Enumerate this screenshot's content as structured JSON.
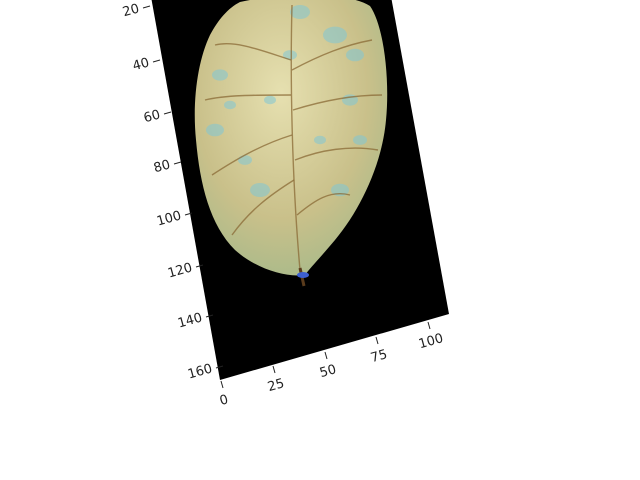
{
  "image": {
    "subject": "leaf-icon",
    "background_color": "#000000",
    "leaf_base_color": "#c9c08a",
    "leaf_highlight_color": "#e6e0b0",
    "spot_color": "#7fc7d6",
    "vein_color": "#8a6a35",
    "stem_color": "#5a3b1c",
    "stem_tip_color": "#3c5fd0"
  },
  "axes": {
    "y_ticks": [
      "20",
      "40",
      "60",
      "80",
      "100",
      "120",
      "140",
      "160"
    ],
    "x_ticks": [
      "0",
      "25",
      "50",
      "75",
      "100"
    ],
    "tick_color": "#222222"
  }
}
